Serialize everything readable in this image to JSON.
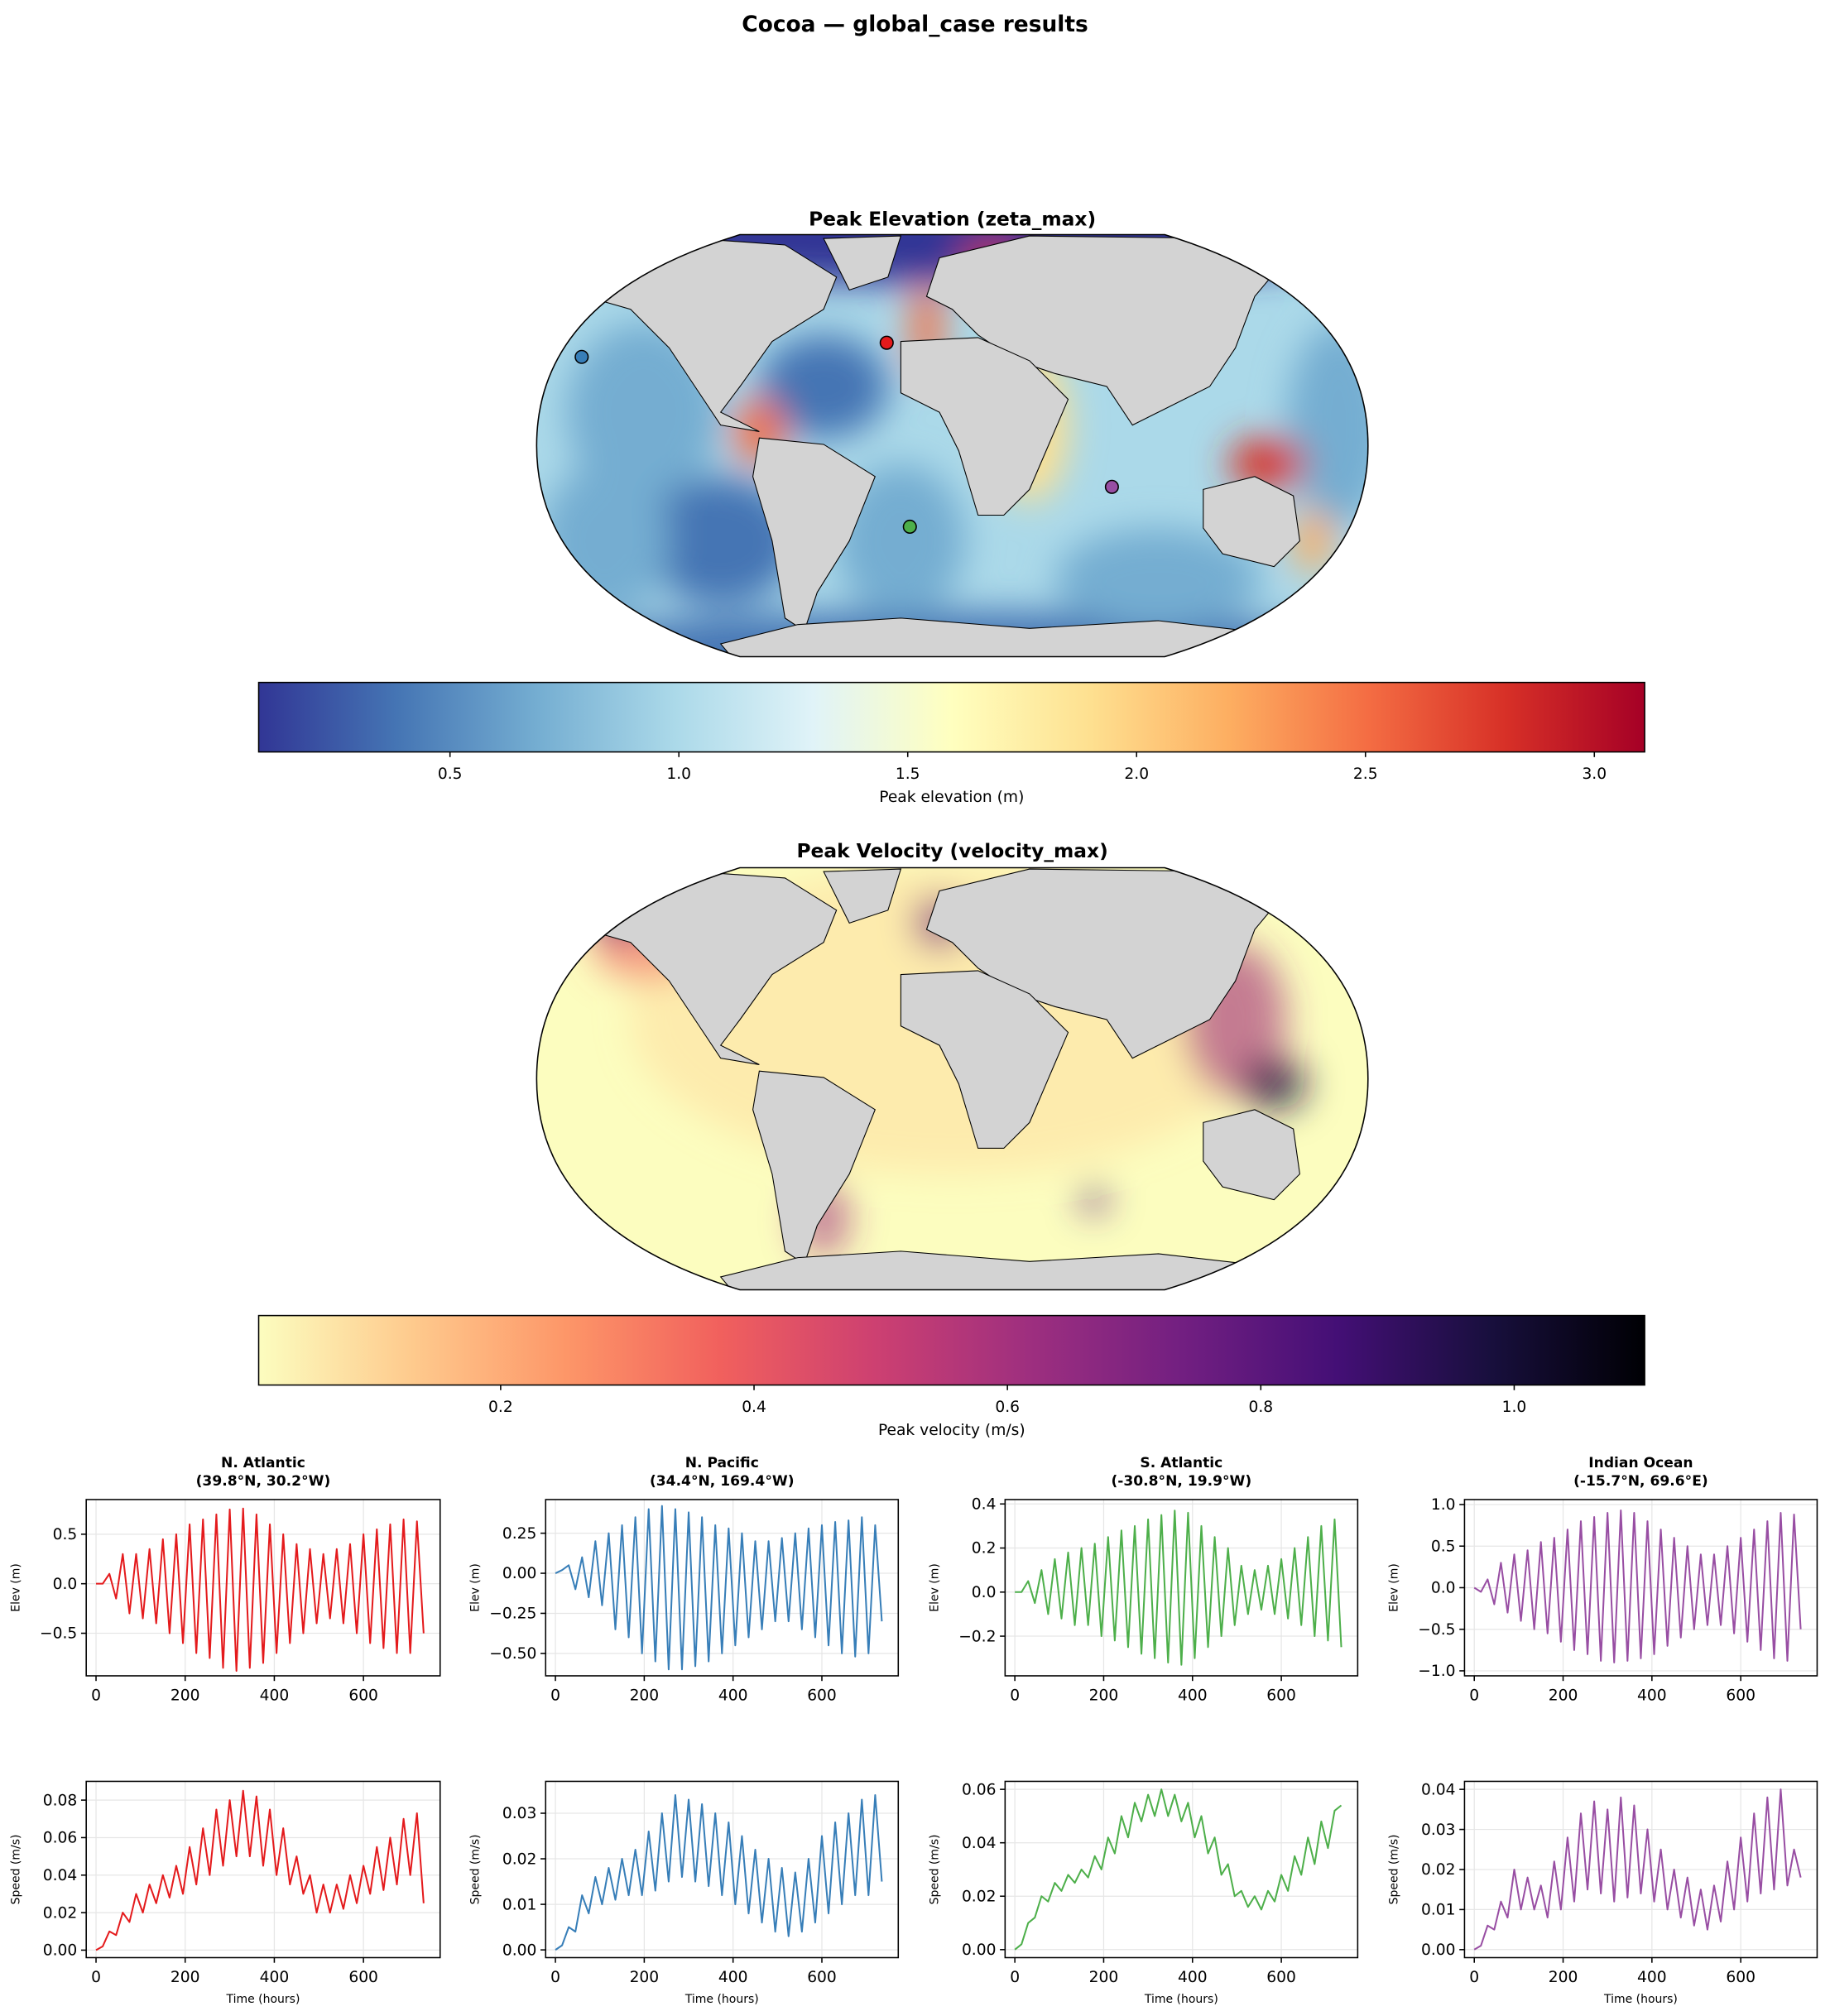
{
  "title": "Cocoa — global_case results",
  "chart_data": [
    {
      "type": "map",
      "title": "Peak Elevation (zeta_max)",
      "colorbar_label": "Peak elevation (m)",
      "clim": [
        0.082,
        3.11
      ],
      "cticks": [
        0.5,
        {
          "value": 1,
          "label": "1.0"
        },
        1.5,
        {
          "value": 2,
          "label": "2.0"
        },
        2.5,
        {
          "value": 3,
          "label": "3.0"
        }
      ],
      "colormap": [
        "#313695",
        "#4575b4",
        "#74add1",
        "#abd9e9",
        "#e0f3f8",
        "#ffffbf",
        "#fee090",
        "#fdae61",
        "#f46d43",
        "#d73027",
        "#a50026"
      ]
    },
    {
      "type": "map",
      "title": "Peak Velocity (velocity_max)",
      "colorbar_label": "Peak velocity (m/s)",
      "clim": [
        0.009,
        1.103
      ],
      "cticks": [
        0.2,
        0.4,
        0.6,
        0.8,
        {
          "value": 1,
          "label": "1.0"
        }
      ],
      "colormap": [
        "#fcfdbf",
        "#feca8d",
        "#fd9668",
        "#f1605d",
        "#cd4071",
        "#9e2f7f",
        "#721f81",
        "#440f76",
        "#180f3d",
        "#000004"
      ]
    },
    {
      "type": "line",
      "title": "N. Atlantic",
      "subtitle": "(39.8°N, 30.2°W)",
      "ylabel": "Elev (m)",
      "color": "#e41a1c",
      "grid": true,
      "xlim": [
        -22,
        772
      ],
      "xticks": [
        0,
        200,
        400,
        600
      ],
      "ylim": [
        -0.93,
        0.85
      ],
      "yticks": [
        {
          "value": -0.5,
          "label": "−0.5"
        },
        {
          "value": 0,
          "label": "0.0"
        },
        0.5
      ],
      "x": [
        0,
        15,
        30,
        45,
        60,
        75,
        90,
        105,
        120,
        135,
        150,
        165,
        180,
        195,
        210,
        225,
        240,
        255,
        270,
        285,
        300,
        315,
        330,
        345,
        360,
        375,
        390,
        405,
        420,
        435,
        450,
        465,
        480,
        495,
        510,
        525,
        540,
        555,
        570,
        585,
        600,
        615,
        630,
        645,
        660,
        675,
        690,
        705,
        720,
        735
      ],
      "values": [
        0,
        0,
        0.1,
        -0.15,
        0.3,
        -0.3,
        0.3,
        -0.35,
        0.35,
        -0.4,
        0.45,
        -0.5,
        0.5,
        -0.6,
        0.6,
        -0.7,
        0.65,
        -0.75,
        0.7,
        -0.85,
        0.75,
        -0.88,
        0.76,
        -0.85,
        0.7,
        -0.8,
        0.6,
        -0.7,
        0.5,
        -0.6,
        0.4,
        -0.5,
        0.35,
        -0.4,
        0.3,
        -0.35,
        0.35,
        -0.4,
        0.4,
        -0.5,
        0.5,
        -0.6,
        0.55,
        -0.65,
        0.6,
        -0.7,
        0.65,
        -0.7,
        0.63,
        -0.5
      ]
    },
    {
      "type": "line",
      "title": "N. Pacific",
      "subtitle": "(34.4°N, 169.4°W)",
      "ylabel": "Elev (m)",
      "color": "#377eb8",
      "grid": true,
      "xlim": [
        -22,
        772
      ],
      "xticks": [
        0,
        200,
        400,
        600
      ],
      "ylim": [
        -0.64,
        0.46
      ],
      "yticks": [
        {
          "value": -0.5,
          "label": "−0.50"
        },
        {
          "value": -0.25,
          "label": "−0.25"
        },
        {
          "value": 0,
          "label": "0.00"
        },
        0.25
      ],
      "x": [
        0,
        15,
        30,
        45,
        60,
        75,
        90,
        105,
        120,
        135,
        150,
        165,
        180,
        195,
        210,
        225,
        240,
        255,
        270,
        285,
        300,
        315,
        330,
        345,
        360,
        375,
        390,
        405,
        420,
        435,
        450,
        465,
        480,
        495,
        510,
        525,
        540,
        555,
        570,
        585,
        600,
        615,
        630,
        645,
        660,
        675,
        690,
        705,
        720,
        735
      ],
      "values": [
        0,
        0.02,
        0.05,
        -0.1,
        0.1,
        -0.15,
        0.2,
        -0.2,
        0.25,
        -0.35,
        0.3,
        -0.4,
        0.35,
        -0.5,
        0.4,
        -0.55,
        0.42,
        -0.6,
        0.4,
        -0.6,
        0.38,
        -0.58,
        0.35,
        -0.55,
        0.3,
        -0.5,
        0.28,
        -0.45,
        0.25,
        -0.4,
        0.2,
        -0.35,
        0.2,
        -0.3,
        0.22,
        -0.3,
        0.25,
        -0.35,
        0.28,
        -0.4,
        0.3,
        -0.45,
        0.32,
        -0.5,
        0.33,
        -0.52,
        0.35,
        -0.5,
        0.3,
        -0.3
      ]
    },
    {
      "type": "line",
      "title": "S. Atlantic",
      "subtitle": "(-30.8°N, 19.9°W)",
      "ylabel": "Elev (m)",
      "color": "#4daf4a",
      "grid": true,
      "xlim": [
        -22,
        772
      ],
      "xticks": [
        0,
        200,
        400,
        600
      ],
      "ylim": [
        -0.38,
        0.42
      ],
      "yticks": [
        {
          "value": -0.2,
          "label": "−0.2"
        },
        {
          "value": 0,
          "label": "0.0"
        },
        0.2,
        0.4
      ],
      "x": [
        0,
        15,
        30,
        45,
        60,
        75,
        90,
        105,
        120,
        135,
        150,
        165,
        180,
        195,
        210,
        225,
        240,
        255,
        270,
        285,
        300,
        315,
        330,
        345,
        360,
        375,
        390,
        405,
        420,
        435,
        450,
        465,
        480,
        495,
        510,
        525,
        540,
        555,
        570,
        585,
        600,
        615,
        630,
        645,
        660,
        675,
        690,
        705,
        720,
        735
      ],
      "values": [
        0,
        0,
        0.05,
        -0.05,
        0.1,
        -0.1,
        0.15,
        -0.12,
        0.18,
        -0.15,
        0.2,
        -0.15,
        0.22,
        -0.2,
        0.25,
        -0.22,
        0.28,
        -0.25,
        0.3,
        -0.28,
        0.33,
        -0.3,
        0.35,
        -0.32,
        0.37,
        -0.33,
        0.36,
        -0.3,
        0.3,
        -0.25,
        0.25,
        -0.2,
        0.2,
        -0.15,
        0.12,
        -0.1,
        0.1,
        -0.08,
        0.12,
        -0.1,
        0.15,
        -0.12,
        0.2,
        -0.15,
        0.25,
        -0.2,
        0.3,
        -0.22,
        0.33,
        -0.25
      ]
    },
    {
      "type": "line",
      "title": "Indian Ocean",
      "subtitle": "(-15.7°N, 69.6°E)",
      "ylabel": "Elev (m)",
      "color": "#984ea3",
      "grid": true,
      "xlim": [
        -22,
        772
      ],
      "xticks": [
        0,
        200,
        400,
        600
      ],
      "ylim": [
        -1.06,
        1.06
      ],
      "yticks": [
        {
          "value": -1,
          "label": "−1.0"
        },
        {
          "value": -0.5,
          "label": "−0.5"
        },
        {
          "value": 0,
          "label": "0.0"
        },
        0.5,
        {
          "value": 1,
          "label": "1.0"
        }
      ],
      "x": [
        0,
        15,
        30,
        45,
        60,
        75,
        90,
        105,
        120,
        135,
        150,
        165,
        180,
        195,
        210,
        225,
        240,
        255,
        270,
        285,
        300,
        315,
        330,
        345,
        360,
        375,
        390,
        405,
        420,
        435,
        450,
        465,
        480,
        495,
        510,
        525,
        540,
        555,
        570,
        585,
        600,
        615,
        630,
        645,
        660,
        675,
        690,
        705,
        720,
        735
      ],
      "values": [
        0,
        -0.05,
        0.1,
        -0.2,
        0.3,
        -0.3,
        0.4,
        -0.4,
        0.45,
        -0.5,
        0.55,
        -0.55,
        0.6,
        -0.65,
        0.7,
        -0.75,
        0.8,
        -0.8,
        0.85,
        -0.88,
        0.9,
        -0.9,
        0.93,
        -0.88,
        0.9,
        -0.85,
        0.8,
        -0.8,
        0.7,
        -0.7,
        0.6,
        -0.6,
        0.5,
        -0.5,
        0.4,
        -0.45,
        0.4,
        -0.45,
        0.5,
        -0.55,
        0.6,
        -0.65,
        0.7,
        -0.75,
        0.8,
        -0.85,
        0.9,
        -0.88,
        0.88,
        -0.5
      ]
    },
    {
      "type": "line",
      "xlabel": "Time (hours)",
      "ylabel": "Speed (m/s)",
      "color": "#e41a1c",
      "grid": true,
      "xlim": [
        -22,
        772
      ],
      "xticks": [
        0,
        200,
        400,
        600
      ],
      "ylim": [
        -0.004,
        0.09
      ],
      "yticks": [
        {
          "value": 0,
          "label": "0.00"
        },
        {
          "value": 0.02,
          "label": "0.02"
        },
        {
          "value": 0.04,
          "label": "0.04"
        },
        {
          "value": 0.06,
          "label": "0.06"
        },
        {
          "value": 0.08,
          "label": "0.08"
        }
      ],
      "x": [
        0,
        15,
        30,
        45,
        60,
        75,
        90,
        105,
        120,
        135,
        150,
        165,
        180,
        195,
        210,
        225,
        240,
        255,
        270,
        285,
        300,
        315,
        330,
        345,
        360,
        375,
        390,
        405,
        420,
        435,
        450,
        465,
        480,
        495,
        510,
        525,
        540,
        555,
        570,
        585,
        600,
        615,
        630,
        645,
        660,
        675,
        690,
        705,
        720,
        735
      ],
      "values": [
        0,
        0.002,
        0.01,
        0.008,
        0.02,
        0.015,
        0.03,
        0.02,
        0.035,
        0.025,
        0.04,
        0.028,
        0.045,
        0.03,
        0.055,
        0.035,
        0.065,
        0.04,
        0.075,
        0.045,
        0.08,
        0.05,
        0.085,
        0.05,
        0.082,
        0.045,
        0.075,
        0.04,
        0.065,
        0.035,
        0.05,
        0.03,
        0.04,
        0.02,
        0.035,
        0.02,
        0.035,
        0.022,
        0.04,
        0.025,
        0.045,
        0.03,
        0.055,
        0.032,
        0.06,
        0.035,
        0.07,
        0.04,
        0.073,
        0.025
      ]
    },
    {
      "type": "line",
      "xlabel": "Time (hours)",
      "ylabel": "Speed (m/s)",
      "color": "#377eb8",
      "grid": true,
      "xlim": [
        -22,
        772
      ],
      "xticks": [
        0,
        200,
        400,
        600
      ],
      "ylim": [
        -0.0017,
        0.037
      ],
      "yticks": [
        {
          "value": 0,
          "label": "0.00"
        },
        {
          "value": 0.01,
          "label": "0.01"
        },
        {
          "value": 0.02,
          "label": "0.02"
        },
        {
          "value": 0.03,
          "label": "0.03"
        }
      ],
      "x": [
        0,
        15,
        30,
        45,
        60,
        75,
        90,
        105,
        120,
        135,
        150,
        165,
        180,
        195,
        210,
        225,
        240,
        255,
        270,
        285,
        300,
        315,
        330,
        345,
        360,
        375,
        390,
        405,
        420,
        435,
        450,
        465,
        480,
        495,
        510,
        525,
        540,
        555,
        570,
        585,
        600,
        615,
        630,
        645,
        660,
        675,
        690,
        705,
        720,
        735
      ],
      "values": [
        0,
        0.001,
        0.005,
        0.004,
        0.012,
        0.008,
        0.016,
        0.01,
        0.018,
        0.011,
        0.02,
        0.012,
        0.022,
        0.012,
        0.026,
        0.013,
        0.03,
        0.015,
        0.034,
        0.016,
        0.033,
        0.015,
        0.032,
        0.014,
        0.03,
        0.012,
        0.028,
        0.01,
        0.025,
        0.008,
        0.022,
        0.006,
        0.02,
        0.004,
        0.018,
        0.003,
        0.017,
        0.004,
        0.02,
        0.006,
        0.025,
        0.008,
        0.028,
        0.01,
        0.03,
        0.012,
        0.033,
        0.012,
        0.034,
        0.015
      ]
    },
    {
      "type": "line",
      "xlabel": "Time (hours)",
      "ylabel": "Speed (m/s)",
      "color": "#4daf4a",
      "grid": true,
      "xlim": [
        -22,
        772
      ],
      "xticks": [
        0,
        200,
        400,
        600
      ],
      "ylim": [
        -0.003,
        0.063
      ],
      "yticks": [
        {
          "value": 0,
          "label": "0.00"
        },
        {
          "value": 0.02,
          "label": "0.02"
        },
        {
          "value": 0.04,
          "label": "0.04"
        },
        {
          "value": 0.06,
          "label": "0.06"
        }
      ],
      "x": [
        0,
        15,
        30,
        45,
        60,
        75,
        90,
        105,
        120,
        135,
        150,
        165,
        180,
        195,
        210,
        225,
        240,
        255,
        270,
        285,
        300,
        315,
        330,
        345,
        360,
        375,
        390,
        405,
        420,
        435,
        450,
        465,
        480,
        495,
        510,
        525,
        540,
        555,
        570,
        585,
        600,
        615,
        630,
        645,
        660,
        675,
        690,
        705,
        720,
        735
      ],
      "values": [
        0,
        0.002,
        0.01,
        0.012,
        0.02,
        0.018,
        0.025,
        0.022,
        0.028,
        0.025,
        0.03,
        0.027,
        0.035,
        0.03,
        0.042,
        0.036,
        0.05,
        0.042,
        0.055,
        0.048,
        0.058,
        0.05,
        0.06,
        0.05,
        0.058,
        0.048,
        0.055,
        0.042,
        0.05,
        0.036,
        0.042,
        0.028,
        0.032,
        0.02,
        0.022,
        0.016,
        0.02,
        0.015,
        0.022,
        0.018,
        0.028,
        0.022,
        0.035,
        0.028,
        0.042,
        0.032,
        0.048,
        0.038,
        0.052,
        0.054
      ]
    },
    {
      "type": "line",
      "xlabel": "Time (hours)",
      "ylabel": "Speed (m/s)",
      "color": "#984ea3",
      "grid": true,
      "xlim": [
        -22,
        772
      ],
      "xticks": [
        0,
        200,
        400,
        600
      ],
      "ylim": [
        -0.002,
        0.042
      ],
      "yticks": [
        {
          "value": 0,
          "label": "0.00"
        },
        {
          "value": 0.01,
          "label": "0.01"
        },
        {
          "value": 0.02,
          "label": "0.02"
        },
        {
          "value": 0.03,
          "label": "0.03"
        },
        {
          "value": 0.04,
          "label": "0.04"
        }
      ],
      "x": [
        0,
        15,
        30,
        45,
        60,
        75,
        90,
        105,
        120,
        135,
        150,
        165,
        180,
        195,
        210,
        225,
        240,
        255,
        270,
        285,
        300,
        315,
        330,
        345,
        360,
        375,
        390,
        405,
        420,
        435,
        450,
        465,
        480,
        495,
        510,
        525,
        540,
        555,
        570,
        585,
        600,
        615,
        630,
        645,
        660,
        675,
        690,
        705,
        720,
        735
      ],
      "values": [
        0,
        0.001,
        0.006,
        0.005,
        0.012,
        0.008,
        0.02,
        0.01,
        0.018,
        0.01,
        0.016,
        0.008,
        0.022,
        0.01,
        0.028,
        0.012,
        0.034,
        0.015,
        0.037,
        0.014,
        0.035,
        0.012,
        0.038,
        0.013,
        0.036,
        0.014,
        0.03,
        0.012,
        0.025,
        0.01,
        0.02,
        0.008,
        0.018,
        0.006,
        0.015,
        0.005,
        0.016,
        0.007,
        0.022,
        0.01,
        0.028,
        0.012,
        0.034,
        0.014,
        0.038,
        0.015,
        0.04,
        0.016,
        0.025,
        0.018
      ]
    }
  ]
}
